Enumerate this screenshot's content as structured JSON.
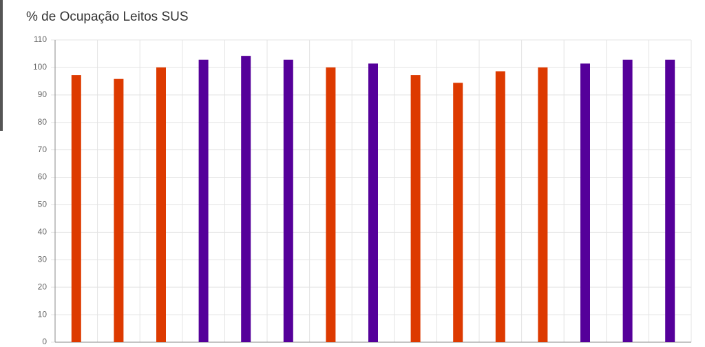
{
  "chart_data": {
    "type": "bar",
    "title": "% de Ocupação Leitos SUS",
    "categories": [
      null,
      null,
      null,
      null,
      null,
      null,
      null,
      null,
      null,
      null,
      null,
      null,
      null,
      null,
      null
    ],
    "values": [
      97.2,
      95.8,
      100,
      102.8,
      104.2,
      102.8,
      100,
      101.4,
      97.2,
      94.4,
      98.6,
      100,
      101.4,
      102.8,
      102.8
    ],
    "colors": [
      "#dd3a00",
      "#dd3a00",
      "#dd3a00",
      "#55009a",
      "#55009a",
      "#55009a",
      "#dd3a00",
      "#55009a",
      "#dd3a00",
      "#dd3a00",
      "#dd3a00",
      "#dd3a00",
      "#55009a",
      "#55009a",
      "#55009a"
    ],
    "ylim": [
      0,
      110
    ],
    "yticks": [
      0,
      10,
      20,
      30,
      40,
      50,
      60,
      70,
      80,
      90,
      100,
      110
    ],
    "grid": true
  }
}
